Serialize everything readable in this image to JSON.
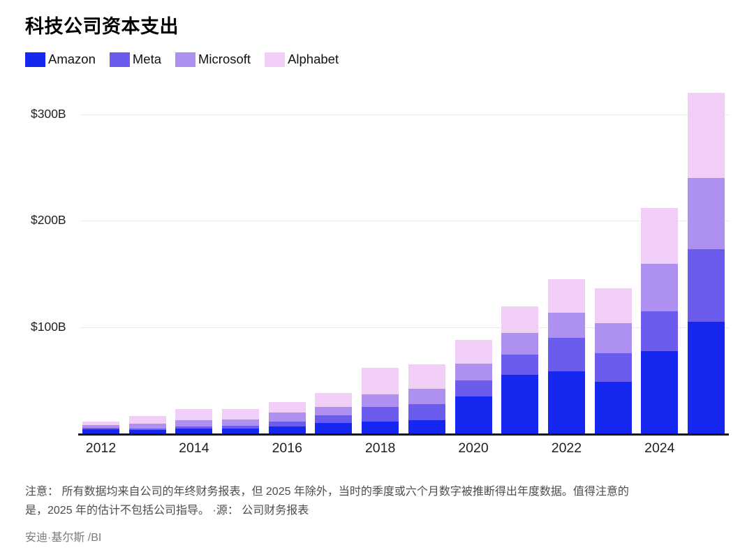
{
  "page": {
    "title": "科技公司资本支出",
    "note_line1": "注意： 所有数据均来自公司的年终财务报表，但 2025 年除外，当时的季度或六个月数字被推断得出年度数据。值得注意的",
    "note_line2": "是，2025 年的估计不包括公司指导。 ·源： 公司财务报表",
    "credit": "安迪·基尔斯 /BI"
  },
  "colors": {
    "amazon": "#1628f0",
    "meta": "#6c5ced",
    "microsoft": "#ae90f1",
    "alphabet": "#f1cef5",
    "gridline": "#eaeaea",
    "axis": "#16161d",
    "note_text": "#4d4d4d",
    "credit_text": "#7b7b7b"
  },
  "chart_data": {
    "type": "bar",
    "stacked": true,
    "title": "科技公司资本支出",
    "categories": [
      2012,
      2013,
      2014,
      2015,
      2016,
      2017,
      2018,
      2019,
      2020,
      2021,
      2022,
      2023,
      2024,
      2025
    ],
    "series": [
      {
        "name": "Amazon",
        "color": "#1628f0",
        "values": [
          3.8,
          3.4,
          4.9,
          4.6,
          6.7,
          10.1,
          11.3,
          12.7,
          35.0,
          55.4,
          58.3,
          48.4,
          77.7,
          105
        ]
      },
      {
        "name": "Meta",
        "color": "#6c5ced",
        "values": [
          1.6,
          1.4,
          1.8,
          2.5,
          4.5,
          6.7,
          13.9,
          15.1,
          15.1,
          18.6,
          31.4,
          27.3,
          37.3,
          68
        ]
      },
      {
        "name": "Microsoft",
        "color": "#ae90f1",
        "values": [
          2.3,
          4.3,
          5.5,
          5.9,
          8.3,
          8.1,
          11.6,
          13.9,
          15.4,
          20.6,
          23.9,
          28.1,
          44.5,
          67
        ]
      },
      {
        "name": "Alphabet",
        "color": "#f1cef5",
        "values": [
          3.3,
          7.4,
          11.0,
          9.9,
          10.2,
          13.2,
          25.1,
          23.5,
          22.3,
          24.6,
          31.5,
          32.3,
          52.5,
          80
        ]
      }
    ],
    "y_ticks": [
      {
        "label": "$100B",
        "value": 100
      },
      {
        "label": "$200B",
        "value": 200
      },
      {
        "label": "$300B",
        "value": 300
      }
    ],
    "x_tick_labels": [
      "2012",
      "2014",
      "2016",
      "2018",
      "2020",
      "2022",
      "2024"
    ],
    "ylim": [
      0,
      330
    ],
    "grid": "horizontal",
    "legend_position": "top-left"
  }
}
